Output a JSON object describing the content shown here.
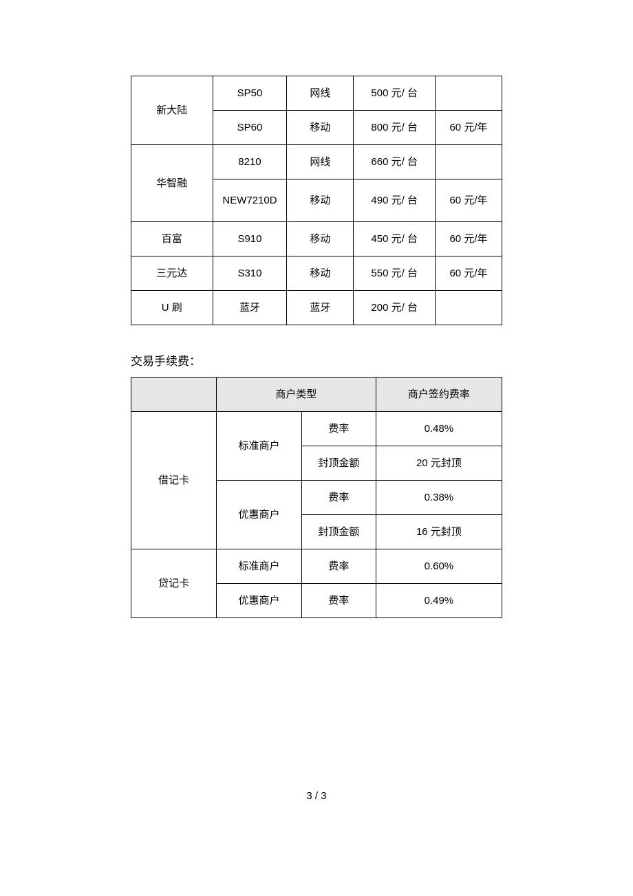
{
  "table1": {
    "columns_width_pct": [
      22,
      20,
      18,
      22,
      18
    ],
    "rows": [
      {
        "vendor": "新大陆",
        "vendor_rowspan": 2,
        "model": "SP50",
        "conn": "网线",
        "price": "500 元/ 台",
        "fee": ""
      },
      {
        "model": "SP60",
        "conn": "移动",
        "price": "800 元/ 台",
        "fee": "60 元/年"
      },
      {
        "vendor": "华智融",
        "vendor_rowspan": 2,
        "model": "8210",
        "conn": "网线",
        "price": "660 元/ 台",
        "fee": ""
      },
      {
        "model": "NEW7210D",
        "model_multiline": true,
        "conn": "移动",
        "price": "490  元/ 台",
        "fee": "60 元/年"
      },
      {
        "vendor": "百富",
        "vendor_rowspan": 1,
        "model": "S910",
        "conn": "移动",
        "price": "450  元/ 台",
        "fee": "60 元/年"
      },
      {
        "vendor": "三元达",
        "vendor_rowspan": 1,
        "model": "S310",
        "conn": "移动",
        "price": "550  元/ 台",
        "fee": "60 元/年"
      },
      {
        "vendor": "U 刷",
        "vendor_rowspan": 1,
        "model": "蓝牙",
        "conn": "蓝牙",
        "price": "200 元/ 台",
        "fee": ""
      }
    ]
  },
  "section2_title": "交易手续费：",
  "table2": {
    "columns_width_pct": [
      23,
      23,
      20,
      34
    ],
    "header": {
      "blank": "",
      "merchant_type": "商户类型",
      "signed_rate": "商户签约费率"
    },
    "groups": [
      {
        "card": "借记卡",
        "card_rowspan": 4,
        "rows": [
          {
            "merchant": "标准商户",
            "merchant_rowspan": 2,
            "label": "费率",
            "value": "0.48%"
          },
          {
            "label": "封顶金额",
            "value": "20 元封顶"
          },
          {
            "merchant": "优惠商户",
            "merchant_rowspan": 2,
            "label": "费率",
            "value": "0.38%"
          },
          {
            "label": "封顶金额",
            "value": "16 元封顶"
          }
        ]
      },
      {
        "card": "贷记卡",
        "card_rowspan": 2,
        "rows": [
          {
            "merchant": "标准商户",
            "merchant_rowspan": 1,
            "label": "费率",
            "value": "0.60%"
          },
          {
            "merchant": "优惠商户",
            "merchant_rowspan": 1,
            "label": "费率",
            "value": "0.49%"
          }
        ]
      }
    ]
  },
  "page_number": "3 / 3",
  "styling": {
    "background_color": "#ffffff",
    "border_color": "#000000",
    "header_bg": "#e6e6e6",
    "font_size_cell": 15,
    "font_size_title": 17,
    "font_size_pagenum": 15
  }
}
